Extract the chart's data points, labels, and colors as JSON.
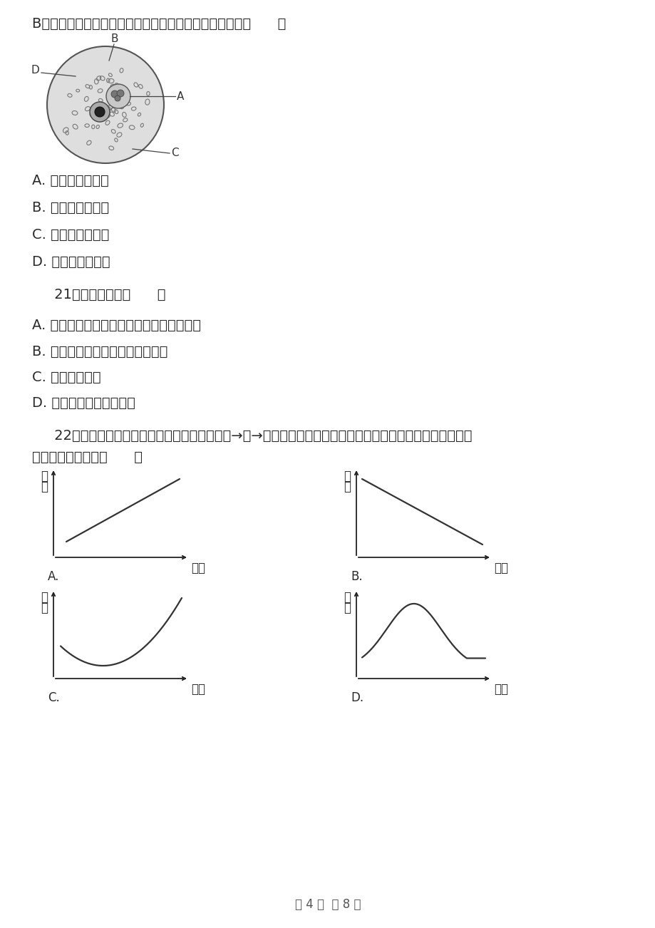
{
  "bg_color": "#ffffff",
  "text_color": "#2a2a2a",
  "font_size_body": 14,
  "font_size_small": 12,
  "line1": "B细胞移到视野中央，则需要将血涂片往什么方向移动？（      ）",
  "option_A1": "A. 红细胞，右上方",
  "option_B1": "B. 白细胞，左上方",
  "option_C1": "C. 血小板，左上方",
  "option_D1": "D. 白细胞，右下方",
  "q21": "     21．生物圈包括（      ）",
  "q21_A": "A. 大气圈的下层、水圈大部、岩石圈的上层",
  "q21_B": "B. 大气圈、水圈、土壤圈、岩石圈",
  "q21_C": "C. 水圈、土壤圈",
  "q21_D": "D. 水圈、土壤圈、岩石圈",
  "q22_line1": "     22．在一个相对封闭的生态系统中，若只有草→兔→狐一条食物链，假如把狐全部杀灭，下图可以正确表示兔",
  "q22_line2": "数量变化的曲线是（      ）",
  "xlabel": "时间",
  "ylabel_line1": "数",
  "ylabel_line2": "量",
  "footer": "第 4 页  共 8 页",
  "graph_label_A": "A.",
  "graph_label_B": "B.",
  "graph_label_C": "C.",
  "graph_label_D": "D."
}
